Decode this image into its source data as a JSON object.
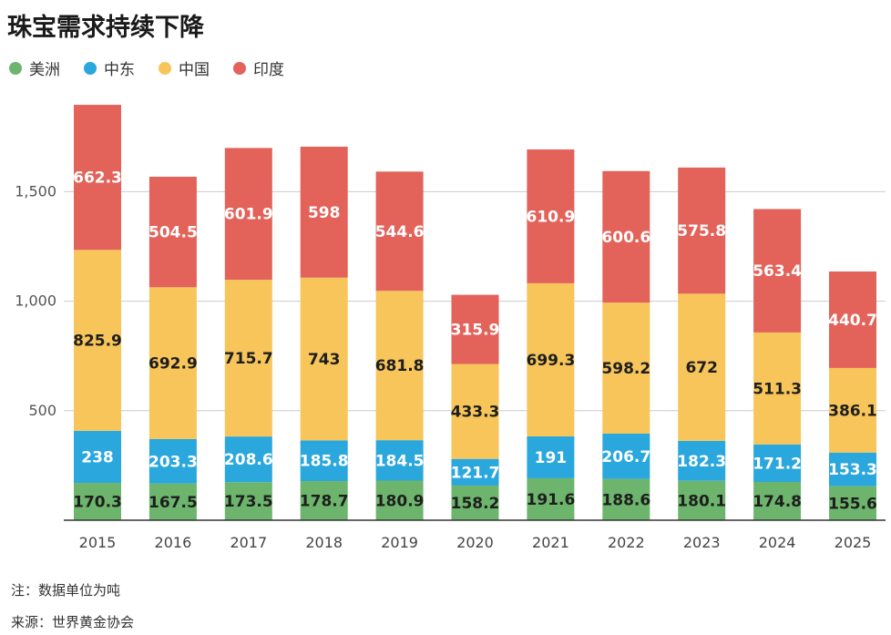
{
  "title": "珠宝需求持续下降",
  "legend": [
    {
      "label": "美洲",
      "color": "#6db56d"
    },
    {
      "label": "中东",
      "color": "#2aa7dc"
    },
    {
      "label": "中国",
      "color": "#f7c55a"
    },
    {
      "label": "印度",
      "color": "#e3625a"
    }
  ],
  "note": "注：数据单位为吨",
  "source": "来源：世界黄金协会",
  "chart_data": {
    "type": "bar",
    "stacked": true,
    "categories": [
      "2015",
      "2016",
      "2017",
      "2018",
      "2019",
      "2020",
      "2021",
      "2022",
      "2023",
      "2024",
      "2025"
    ],
    "series": [
      {
        "name": "美洲",
        "color": "#6db56d",
        "values": [
          170.3,
          167.5,
          173.5,
          178.7,
          180.9,
          158.2,
          191.6,
          188.6,
          180.1,
          174.8,
          155.6
        ]
      },
      {
        "name": "中东",
        "color": "#2aa7dc",
        "values": [
          238,
          203.3,
          208.6,
          185.8,
          184.5,
          121.7,
          191,
          206.7,
          182.3,
          171.2,
          153.3
        ]
      },
      {
        "name": "中国",
        "color": "#f7c55a",
        "values": [
          825.9,
          692.9,
          715.7,
          743,
          681.8,
          433.3,
          699.3,
          598.2,
          672,
          511.3,
          386.1
        ]
      },
      {
        "name": "印度",
        "color": "#e3625a",
        "values": [
          662.3,
          504.5,
          601.9,
          598,
          544.6,
          315.9,
          610.9,
          600.6,
          575.8,
          563.4,
          440.7
        ]
      }
    ],
    "yticks": [
      500,
      1000,
      1500
    ],
    "ytick_labels": [
      "500",
      "1,000",
      "1,500"
    ],
    "ylim": [
      0,
      1900
    ],
    "grid": true
  }
}
